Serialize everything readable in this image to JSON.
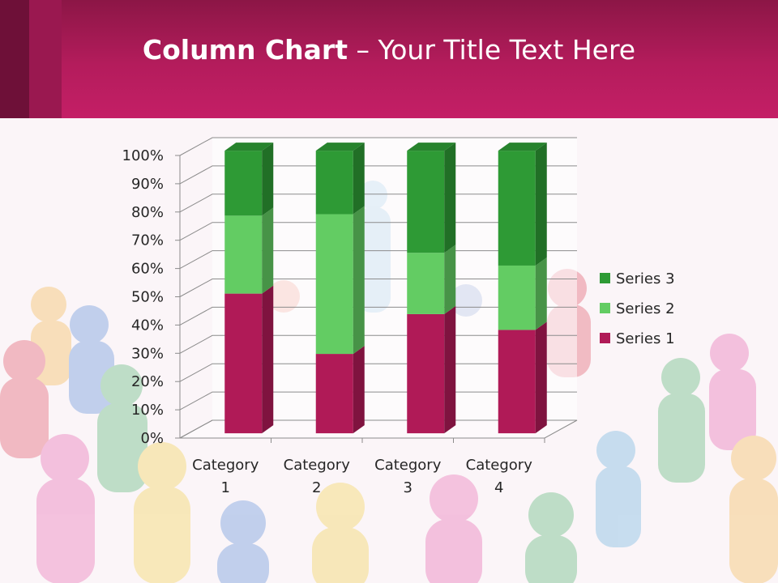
{
  "slide": {
    "title_bold": "Column Chart",
    "title_rest": " – Your Title Text Here",
    "colors": {
      "header": "#b41c5c",
      "header_dark": "#6e1038",
      "background": "#fbf5f8"
    }
  },
  "chart_data": {
    "type": "bar",
    "stacked": "100%",
    "three_d": true,
    "title": "",
    "xlabel": "",
    "ylabel": "",
    "categories": [
      "Category 1",
      "Category 2",
      "Category 3",
      "Category 4"
    ],
    "category_lines": [
      [
        "Category",
        "1"
      ],
      [
        "Category",
        "2"
      ],
      [
        "Category",
        "3"
      ],
      [
        "Category",
        "4"
      ]
    ],
    "series": [
      {
        "name": "Series 1",
        "values": [
          4.3,
          2.5,
          3.5,
          4.5
        ],
        "percent": [
          50,
          28,
          43,
          37
        ],
        "color": "#b01a57"
      },
      {
        "name": "Series 2",
        "values": [
          2.4,
          4.4,
          1.8,
          2.8
        ],
        "percent": [
          28,
          50,
          21,
          23
        ],
        "color": "#63cc63"
      },
      {
        "name": "Series 3",
        "values": [
          2,
          2,
          3,
          5
        ],
        "percent": [
          22,
          22,
          36,
          40
        ],
        "color": "#2e9a35"
      }
    ],
    "y_ticks": [
      "0%",
      "10%",
      "20%",
      "30%",
      "40%",
      "50%",
      "60%",
      "70%",
      "80%",
      "90%",
      "100%"
    ],
    "ylim": [
      0,
      100
    ],
    "grid": true,
    "legend": "right"
  }
}
